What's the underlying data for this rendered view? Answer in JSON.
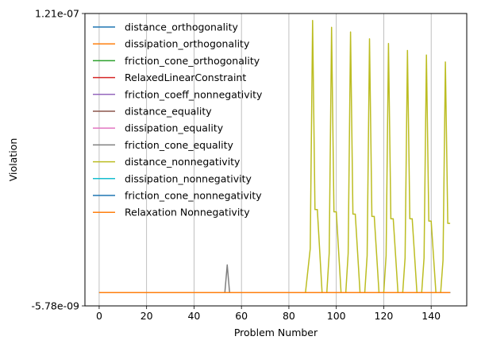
{
  "chart_data": {
    "type": "line",
    "title": "",
    "xlabel": "Problem Number",
    "ylabel": "Violation",
    "xlim": [
      -6,
      155
    ],
    "ylim": [
      -5.78e-09,
      1.21e-07
    ],
    "x_ticks": [
      0,
      20,
      40,
      60,
      80,
      100,
      120,
      140
    ],
    "y_tick_labels": [
      "-5.78e-09",
      "1.21e-07"
    ],
    "y_ticks": [
      -5.78e-09,
      1.21e-07
    ],
    "grid": "vertical",
    "legend_position": "upper-left",
    "series": [
      {
        "name": "distance_orthogonality",
        "color": "#1f77b4",
        "points": [
          [
            0,
            0
          ],
          [
            148,
            0
          ]
        ]
      },
      {
        "name": "dissipation_orthogonality",
        "color": "#ff7f0e",
        "points": [
          [
            0,
            0
          ],
          [
            148,
            0
          ]
        ]
      },
      {
        "name": "friction_cone_orthogonality",
        "color": "#2ca02c",
        "points": [
          [
            0,
            0
          ],
          [
            148,
            0
          ]
        ]
      },
      {
        "name": "RelaxedLinearConstraint",
        "color": "#d62728",
        "points": [
          [
            0,
            0
          ],
          [
            148,
            0
          ]
        ]
      },
      {
        "name": "friction_coeff_nonnegativity",
        "color": "#9467bd",
        "points": [
          [
            0,
            0
          ],
          [
            148,
            0
          ]
        ]
      },
      {
        "name": "distance_equality",
        "color": "#8c564b",
        "points": [
          [
            0,
            0
          ],
          [
            148,
            0
          ]
        ]
      },
      {
        "name": "dissipation_equality",
        "color": "#e377c2",
        "points": [
          [
            0,
            0
          ],
          [
            148,
            0
          ]
        ]
      },
      {
        "name": "friction_cone_equality",
        "color": "#7f7f7f",
        "points": [
          [
            0,
            0
          ],
          [
            53,
            0
          ],
          [
            54,
            1.2e-08
          ],
          [
            55,
            0
          ],
          [
            148,
            0
          ]
        ]
      },
      {
        "name": "distance_nonnegativity",
        "color": "#bcbd22",
        "points": [
          [
            0,
            0
          ],
          [
            87,
            0
          ],
          [
            89,
            1.9e-08
          ],
          [
            90,
            1.18e-07
          ],
          [
            91,
            3.6e-08
          ],
          [
            92,
            3.6e-08
          ],
          [
            94,
            0
          ],
          [
            96,
            0
          ],
          [
            97,
            1.7e-08
          ],
          [
            98,
            1.15e-07
          ],
          [
            99,
            3.5e-08
          ],
          [
            100,
            3.5e-08
          ],
          [
            102,
            0
          ],
          [
            104,
            0
          ],
          [
            105,
            1.7e-08
          ],
          [
            106,
            1.13e-07
          ],
          [
            107,
            3.4e-08
          ],
          [
            108,
            3.4e-08
          ],
          [
            110,
            0
          ],
          [
            112,
            0
          ],
          [
            113,
            1.6e-08
          ],
          [
            114,
            1.1e-07
          ],
          [
            115,
            3.3e-08
          ],
          [
            116,
            3.3e-08
          ],
          [
            118,
            0
          ],
          [
            120,
            0
          ],
          [
            121,
            1.6e-08
          ],
          [
            122,
            1.08e-07
          ],
          [
            123,
            3.2e-08
          ],
          [
            124,
            3.2e-08
          ],
          [
            126,
            0
          ],
          [
            128,
            0
          ],
          [
            129,
            1.5e-08
          ],
          [
            130,
            1.05e-07
          ],
          [
            131,
            3.2e-08
          ],
          [
            132,
            3.2e-08
          ],
          [
            134,
            0
          ],
          [
            136,
            0
          ],
          [
            137,
            1.5e-08
          ],
          [
            138,
            1.03e-07
          ],
          [
            139,
            3.1e-08
          ],
          [
            140,
            3.1e-08
          ],
          [
            142,
            0
          ],
          [
            144,
            0
          ],
          [
            145,
            1.4e-08
          ],
          [
            146,
            1e-07
          ],
          [
            147,
            3e-08
          ],
          [
            148,
            3e-08
          ]
        ]
      },
      {
        "name": "dissipation_nonnegativity",
        "color": "#17becf",
        "points": [
          [
            0,
            0
          ],
          [
            148,
            0
          ]
        ]
      },
      {
        "name": "friction_cone_nonnegativity",
        "color": "#1f77b4",
        "points": [
          [
            0,
            0
          ],
          [
            148,
            0
          ]
        ]
      },
      {
        "name": "Relaxation Nonnegativity",
        "color": "#ff7f0e",
        "points": [
          [
            0,
            0
          ],
          [
            148,
            0
          ]
        ]
      }
    ]
  }
}
